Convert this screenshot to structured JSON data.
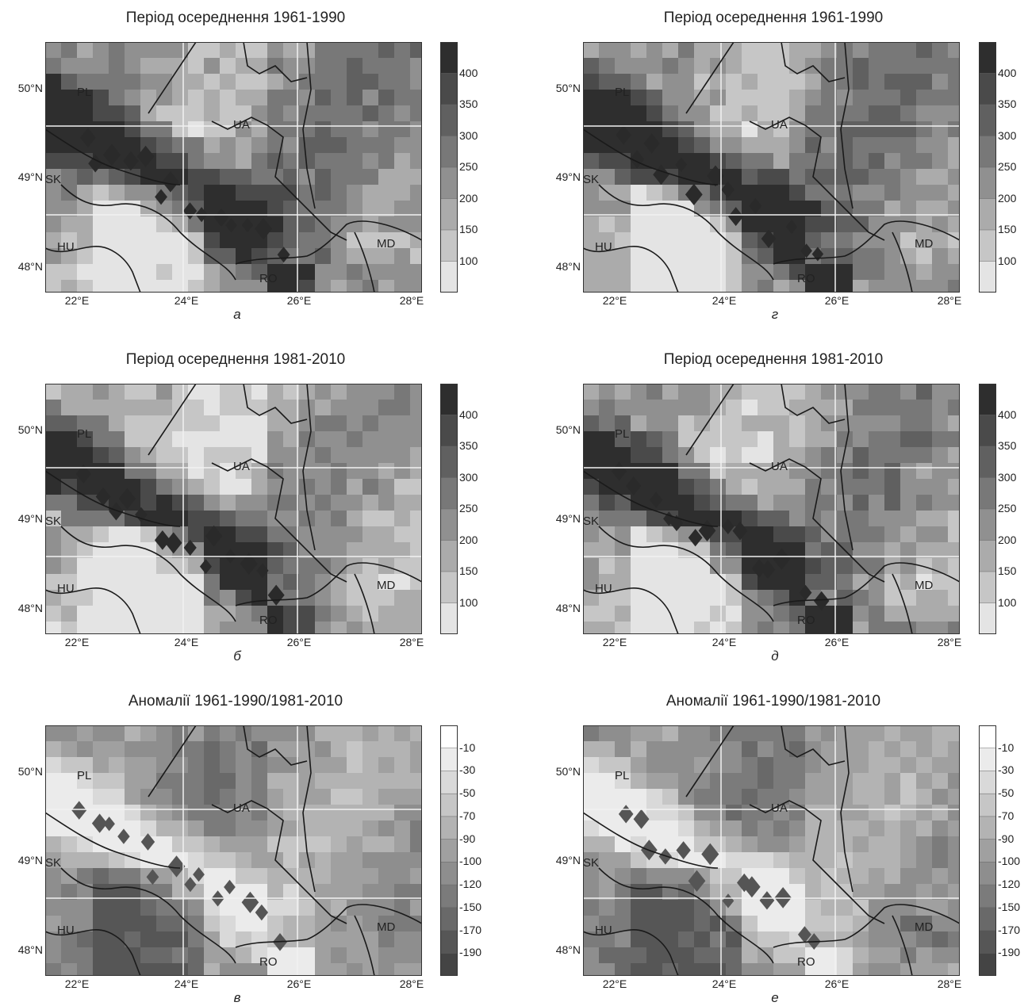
{
  "panels": [
    {
      "title": "Період осереднення 1961-1990",
      "letter": "а",
      "legend": "abs"
    },
    {
      "title": "Період осереднення 1961-1990",
      "letter": "г",
      "legend": "abs"
    },
    {
      "title": "Період осереднення 1981-2010",
      "letter": "б",
      "legend": "abs"
    },
    {
      "title": "Період осереднення 1981-2010",
      "letter": "д",
      "legend": "abs"
    },
    {
      "title": "Аномалії 1961-1990/1981-2010",
      "letter": "в",
      "legend": "anom"
    },
    {
      "title": "Аномалії 1961-1990/1981-2010",
      "letter": "е",
      "legend": "anom"
    }
  ],
  "axes": {
    "lat_ticks": [
      "50°N",
      "49°N",
      "48°N"
    ],
    "lon_ticks": [
      "22°E",
      "24°E",
      "26°E",
      "28°E"
    ]
  },
  "countries": [
    "PL",
    "SK",
    "HU",
    "UA",
    "RO",
    "MD"
  ],
  "legends": {
    "abs": {
      "labels": [
        "400",
        "350",
        "300",
        "250",
        "200",
        "150",
        "100"
      ],
      "colors": [
        "#2e2e2e",
        "#4a4a4a",
        "#606060",
        "#787878",
        "#909090",
        "#ababab",
        "#c6c6c6",
        "#e4e4e4"
      ]
    },
    "anom": {
      "labels": [
        "-10",
        "-30",
        "-50",
        "-70",
        "-90",
        "-100",
        "-120",
        "-150",
        "-170",
        "-190"
      ],
      "colors": [
        "#ffffff",
        "#ebebeb",
        "#d9d9d9",
        "#c6c6c6",
        "#b3b3b3",
        "#a0a0a0",
        "#8e8e8e",
        "#7b7b7b",
        "#696969",
        "#565656",
        "#444444"
      ]
    }
  }
}
